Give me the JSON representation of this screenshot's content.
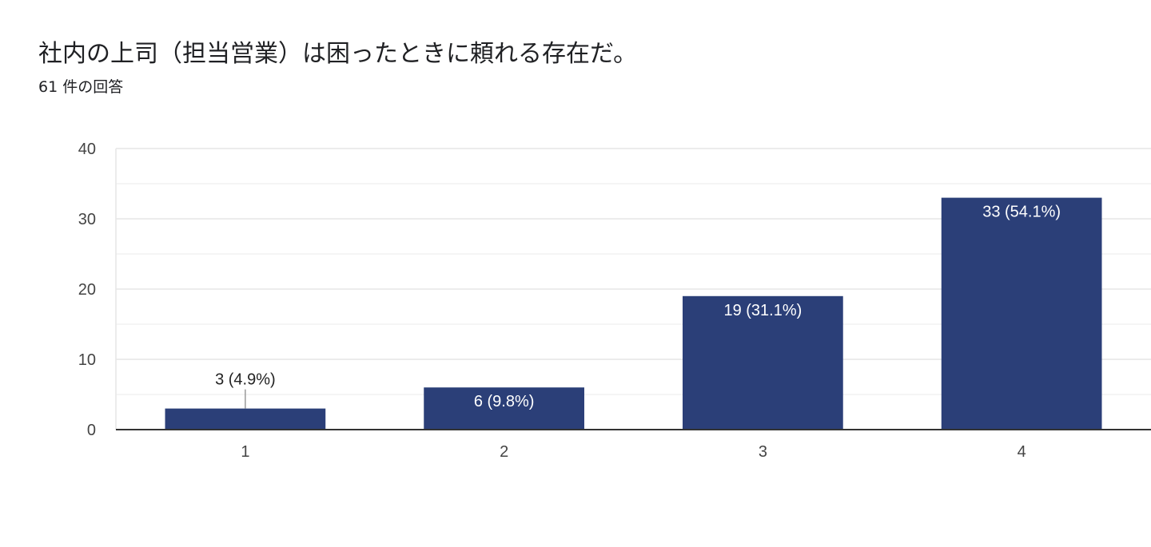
{
  "question": {
    "title": "社内の上司（担当営業）は困ったときに頼れる存在だ。",
    "response_count": "61 件の回答"
  },
  "colors": {
    "bar": "#2b3f78",
    "major_grid": "#e6e6e6",
    "minor_grid": "#f2f2f2",
    "baseline": "#333333",
    "leader_line": "#999999"
  },
  "chart_data": {
    "type": "bar",
    "categories": [
      "1",
      "2",
      "3",
      "4"
    ],
    "values": [
      3,
      6,
      19,
      33
    ],
    "data_labels": [
      "3 (4.9%)",
      "6 (9.8%)",
      "19 (31.1%)",
      "33 (54.1%)"
    ],
    "ylim": [
      0,
      40
    ],
    "yticks": [
      0,
      10,
      20,
      30,
      40
    ],
    "minor_grid_step": 5,
    "grid": true,
    "legend": "none",
    "title": "",
    "xlabel": "",
    "ylabel": ""
  }
}
